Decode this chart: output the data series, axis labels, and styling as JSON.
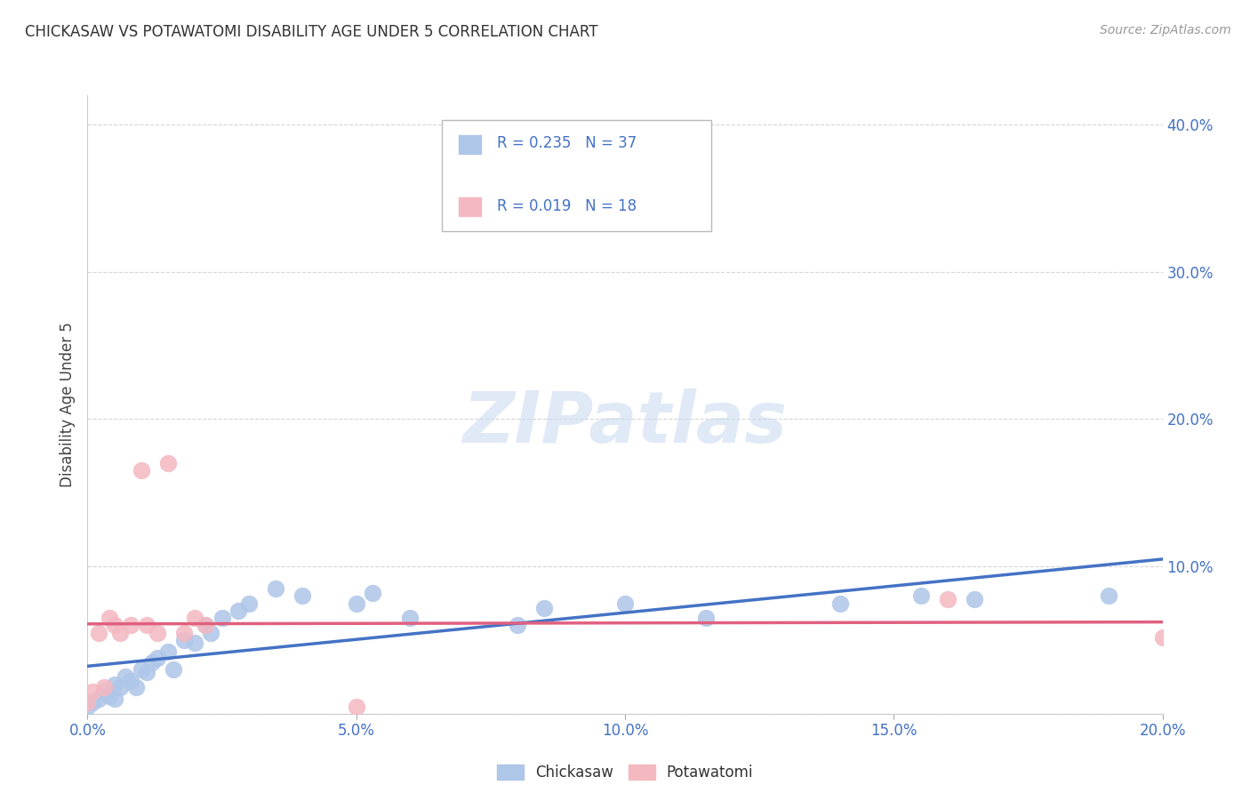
{
  "title": "CHICKASAW VS POTAWATOMI DISABILITY AGE UNDER 5 CORRELATION CHART",
  "source": "Source: ZipAtlas.com",
  "ylabel": "Disability Age Under 5",
  "xlim": [
    0.0,
    0.2
  ],
  "ylim": [
    0.0,
    0.42
  ],
  "xticks": [
    0.0,
    0.05,
    0.1,
    0.15,
    0.2
  ],
  "yticks": [
    0.0,
    0.1,
    0.2,
    0.3,
    0.4
  ],
  "chickasaw_color": "#aec6e8",
  "potawatomi_color": "#f4b8c1",
  "chickasaw_line_color": "#4472c4",
  "potawatomi_line_color": "#e06080",
  "R_chickasaw": 0.235,
  "N_chickasaw": 37,
  "R_potawatomi": 0.019,
  "N_potawatomi": 18,
  "legend_color": "#4472c4",
  "N_color": "#e05000",
  "watermark_text": "ZIPatlas",
  "watermark_color": "#c8d8f0",
  "background_color": "#ffffff",
  "grid_color": "#cccccc",
  "chickasaw_x": [
    0.0,
    0.001,
    0.002,
    0.003,
    0.004,
    0.005,
    0.005,
    0.006,
    0.007,
    0.008,
    0.009,
    0.01,
    0.011,
    0.012,
    0.013,
    0.015,
    0.016,
    0.018,
    0.02,
    0.022,
    0.023,
    0.025,
    0.028,
    0.03,
    0.035,
    0.04,
    0.05,
    0.053,
    0.06,
    0.08,
    0.085,
    0.1,
    0.115,
    0.14,
    0.155,
    0.165,
    0.19
  ],
  "chickasaw_y": [
    0.005,
    0.008,
    0.01,
    0.015,
    0.012,
    0.01,
    0.02,
    0.018,
    0.025,
    0.022,
    0.018,
    0.03,
    0.028,
    0.035,
    0.038,
    0.042,
    0.03,
    0.05,
    0.048,
    0.06,
    0.055,
    0.065,
    0.07,
    0.075,
    0.085,
    0.08,
    0.075,
    0.082,
    0.065,
    0.06,
    0.072,
    0.075,
    0.065,
    0.075,
    0.08,
    0.078,
    0.08
  ],
  "potawatomi_x": [
    0.0,
    0.001,
    0.002,
    0.003,
    0.004,
    0.005,
    0.006,
    0.008,
    0.01,
    0.011,
    0.013,
    0.015,
    0.018,
    0.02,
    0.022,
    0.05,
    0.16,
    0.2
  ],
  "potawatomi_y": [
    0.008,
    0.015,
    0.055,
    0.018,
    0.065,
    0.06,
    0.055,
    0.06,
    0.165,
    0.06,
    0.055,
    0.17,
    0.055,
    0.065,
    0.06,
    0.005,
    0.078,
    0.052
  ]
}
